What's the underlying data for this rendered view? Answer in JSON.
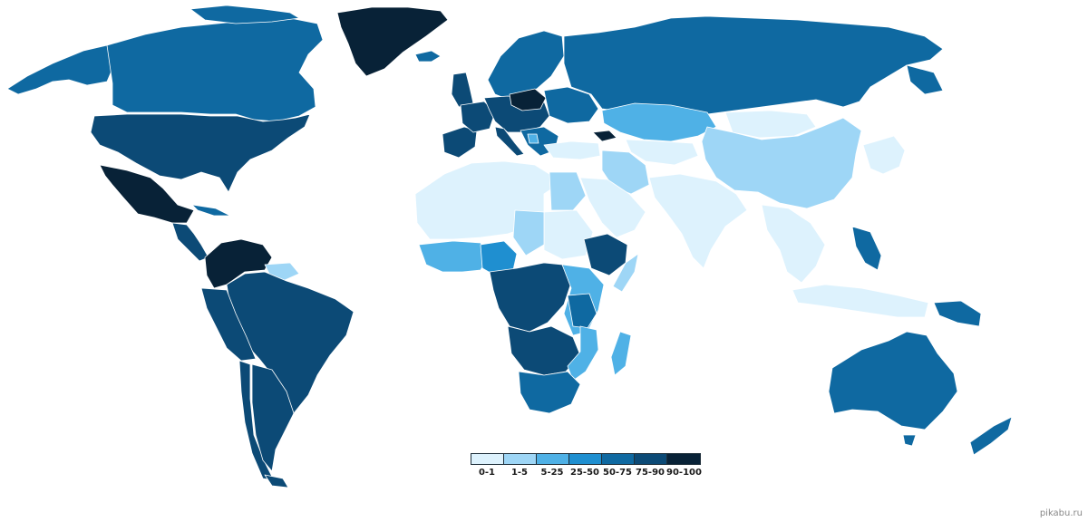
{
  "colors": {
    "c0": "#ddf2fd",
    "c1": "#9ed6f6",
    "c2": "#4fb1e6",
    "c3": "#1f8fd0",
    "c4": "#0f69a1",
    "c5": "#0c4a76",
    "c6": "#082237",
    "border": "#ffffff"
  },
  "legend": {
    "items": [
      {
        "label": "0-1",
        "color": "#ddf2fd"
      },
      {
        "label": "1-5",
        "color": "#9ed6f6"
      },
      {
        "label": "5-25",
        "color": "#4fb1e6"
      },
      {
        "label": "25-50",
        "color": "#1f8fd0"
      },
      {
        "label": "50-75",
        "color": "#0f69a1"
      },
      {
        "label": "75-90",
        "color": "#0c4a76"
      },
      {
        "label": "90-100",
        "color": "#082237"
      }
    ]
  },
  "watermark": "pikabu.ru"
}
